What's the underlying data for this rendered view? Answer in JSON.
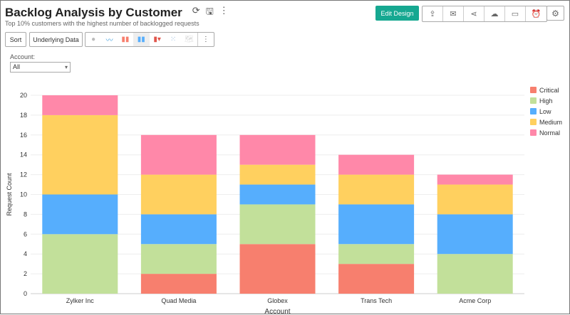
{
  "header": {
    "title": "Backlog Analysis by Customer",
    "subtitle": "Top 10% customers with the highest number of backlogged requests"
  },
  "toolbar": {
    "sort": "Sort",
    "underlying": "Underlying Data",
    "chart_types": [
      "pie-icon",
      "line-icon",
      "bar-icon",
      "stacked-bar-icon",
      "waterfall-icon",
      "scatter-icon",
      "map-icon"
    ],
    "edit_design": "Edit Design",
    "actions": [
      "export-icon",
      "email-icon",
      "share-icon",
      "publish-icon",
      "comment-icon",
      "schedule-icon"
    ]
  },
  "filter": {
    "label": "Account:",
    "value": "All"
  },
  "chart_data": {
    "type": "bar",
    "stacked": true,
    "categories": [
      "Zylker Inc",
      "Quad Media",
      "Globex",
      "Trans Tech",
      "Acme Corp"
    ],
    "xlabel": "Account",
    "ylabel": "Request Count",
    "ylim": [
      0,
      20
    ],
    "yticks": [
      "0",
      "2",
      "4",
      "6",
      "8",
      "10",
      "12",
      "14",
      "16",
      "18",
      "20"
    ],
    "legend_position": "right",
    "series": [
      {
        "name": "Critical",
        "color": "#F77F6E",
        "values": [
          0,
          2,
          5,
          3,
          0
        ]
      },
      {
        "name": "High",
        "color": "#C2E09A",
        "values": [
          6,
          3,
          4,
          2,
          4
        ]
      },
      {
        "name": "Low",
        "color": "#56AEFD",
        "values": [
          4,
          3,
          2,
          4,
          4
        ]
      },
      {
        "name": "Medium",
        "color": "#FFD05F",
        "values": [
          8,
          4,
          2,
          3,
          3
        ]
      },
      {
        "name": "Normal",
        "color": "#FF88A9",
        "values": [
          2,
          4,
          3,
          2,
          1
        ]
      }
    ]
  }
}
